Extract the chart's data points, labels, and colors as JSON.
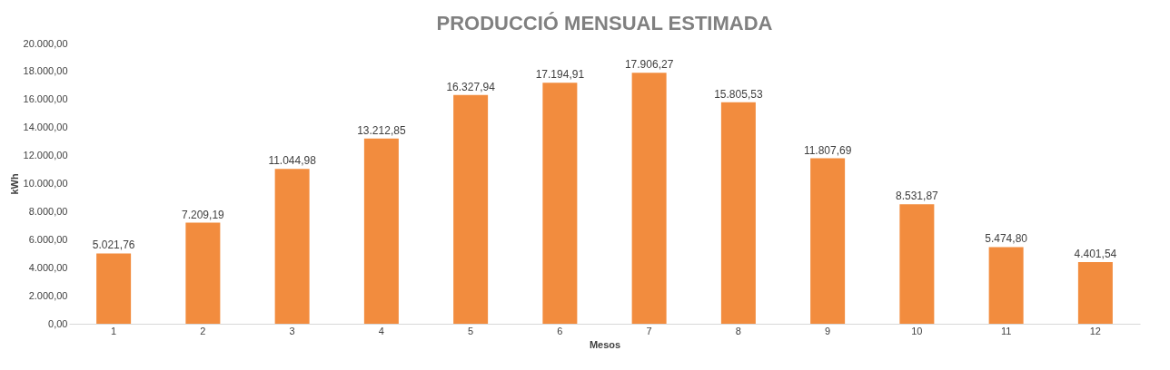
{
  "chart_data": {
    "type": "bar",
    "title": "PRODUCCIÓ MENSUAL ESTIMADA",
    "xlabel": "Mesos",
    "ylabel": "kWh",
    "categories": [
      "1",
      "2",
      "3",
      "4",
      "5",
      "6",
      "7",
      "8",
      "9",
      "10",
      "11",
      "12"
    ],
    "values": [
      5021.76,
      7209.19,
      11044.98,
      13212.85,
      16327.94,
      17194.91,
      17906.27,
      15805.53,
      11807.69,
      8531.87,
      5474.8,
      4401.54
    ],
    "value_labels": [
      "5.021,76",
      "7.209,19",
      "11.044,98",
      "13.212,85",
      "16.327,94",
      "17.194,91",
      "17.906,27",
      "15.805,53",
      "11.807,69",
      "8.531,87",
      "5.474,80",
      "4.401,54"
    ],
    "color": "#f28c3e",
    "ylim": [
      0,
      20000
    ],
    "yticks": [
      {
        "value": 0,
        "label": "0,00"
      },
      {
        "value": 2000,
        "label": "2.000,00"
      },
      {
        "value": 4000,
        "label": "4.000,00"
      },
      {
        "value": 6000,
        "label": "6.000,00"
      },
      {
        "value": 8000,
        "label": "8.000,00"
      },
      {
        "value": 10000,
        "label": "10.000,00"
      },
      {
        "value": 12000,
        "label": "12.000,00"
      },
      {
        "value": 14000,
        "label": "14.000,00"
      },
      {
        "value": 16000,
        "label": "16.000,00"
      },
      {
        "value": 18000,
        "label": "18.000,00"
      },
      {
        "value": 20000,
        "label": "20.000,00"
      }
    ],
    "grid": false
  }
}
